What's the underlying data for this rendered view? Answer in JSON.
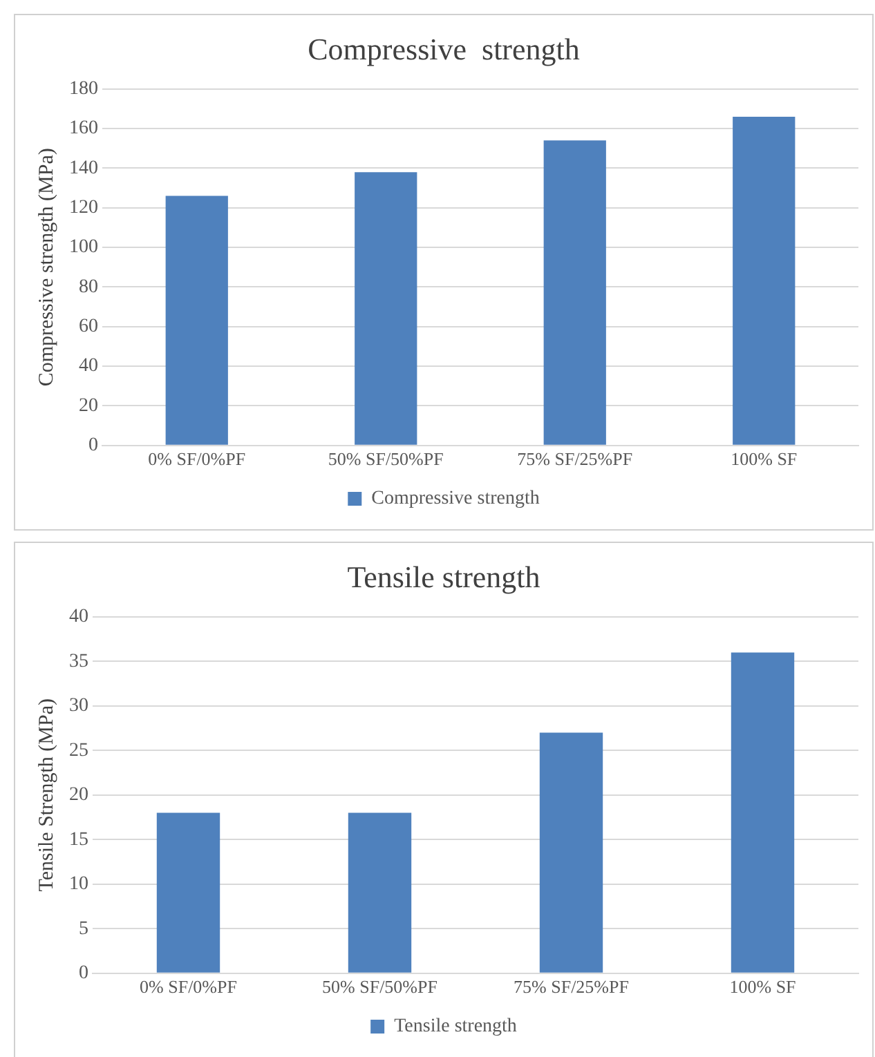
{
  "chart_data": [
    {
      "type": "bar",
      "title": "Compressive  strength",
      "ylabel": "Compressive strength (MPa)",
      "categories": [
        "0% SF/0%PF",
        "50% SF/50%PF",
        "75% SF/25%PF",
        "100% SF"
      ],
      "series": [
        {
          "name": "Compressive strength",
          "color": "#4f81bd",
          "values": [
            126,
            138,
            154,
            166
          ]
        }
      ],
      "ylim": [
        0,
        180
      ],
      "yticks": [
        0,
        20,
        40,
        60,
        80,
        100,
        120,
        140,
        160,
        180
      ],
      "grid": "y",
      "legend": "bottom"
    },
    {
      "type": "bar",
      "title": "Tensile strength",
      "ylabel": "Tensile Strength (MPa)",
      "categories": [
        "0% SF/0%PF",
        "50% SF/50%PF",
        "75% SF/25%PF",
        "100% SF"
      ],
      "series": [
        {
          "name": "Tensile strength",
          "color": "#4f81bd",
          "values": [
            18,
            18,
            27,
            36
          ]
        }
      ],
      "ylim": [
        0,
        40
      ],
      "yticks": [
        0,
        5,
        10,
        15,
        20,
        25,
        30,
        35,
        40
      ],
      "grid": "y",
      "legend": "bottom"
    }
  ]
}
